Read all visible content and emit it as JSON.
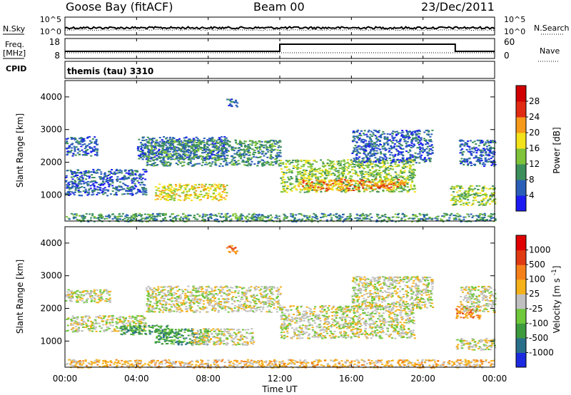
{
  "header": {
    "station": "Goose Bay (fitACF)",
    "beam": "Beam 00",
    "date": "23/Dec/2011"
  },
  "noise_panel": {
    "left_label": "N.Sky",
    "right_label": "N.Search",
    "left_ticks": [
      "10^5",
      "10^0"
    ],
    "right_ticks": [
      "10^5",
      "10^0"
    ]
  },
  "freq_panel": {
    "left_label_1": "Freq.",
    "left_label_2": "[MHz]",
    "right_label": "Nave",
    "left_ticks": [
      "18",
      "8"
    ],
    "right_ticks": [
      "60",
      "0"
    ],
    "freq_step_hours": [
      12.0,
      21.8
    ]
  },
  "cpid": {
    "label": "CPID",
    "value": "themis (tau) 3310"
  },
  "x_axis": {
    "label": "Time UT",
    "ticks": [
      "00:00",
      "04:00",
      "08:00",
      "12:00",
      "16:00",
      "20:00",
      "00:00"
    ],
    "range_hours": [
      0,
      24
    ]
  },
  "chart_data": [
    {
      "type": "heatmap",
      "panel": "power",
      "ylabel": "Slant Range [km]",
      "yticks": [
        "1000",
        "2000",
        "3000",
        "4000"
      ],
      "ylim": [
        200,
        4500
      ],
      "colorbar_label": "Power [dB]",
      "colorbar_ticks": [
        "4",
        "8",
        "12",
        "16",
        "20",
        "24",
        "28"
      ],
      "colorbar_colors": [
        "#1c1cf2",
        "#2a5fb8",
        "#3d8f5c",
        "#7ec33a",
        "#f3e21a",
        "#f59a1a",
        "#e02a12",
        "#d00000"
      ],
      "scatter_regions": [
        {
          "t": [
            0.0,
            1.8
          ],
          "r": [
            2200,
            2800
          ],
          "level": 1
        },
        {
          "t": [
            0.0,
            4.5
          ],
          "r": [
            1000,
            1800
          ],
          "level": 1
        },
        {
          "t": [
            4.0,
            9.0
          ],
          "r": [
            2100,
            2800
          ],
          "level": 1
        },
        {
          "t": [
            5.0,
            9.0
          ],
          "r": [
            850,
            1350
          ],
          "level": 4
        },
        {
          "t": [
            4.5,
            12.0
          ],
          "r": [
            1900,
            2700
          ],
          "level": 2
        },
        {
          "t": [
            12.0,
            19.5
          ],
          "r": [
            1100,
            2100
          ],
          "level": 3
        },
        {
          "t": [
            13.0,
            19.0
          ],
          "r": [
            1150,
            1500
          ],
          "level": 5
        },
        {
          "t": [
            16.0,
            20.5
          ],
          "r": [
            2000,
            3000
          ],
          "level": 1
        },
        {
          "t": [
            21.5,
            24.0
          ],
          "r": [
            700,
            1300
          ],
          "level": 3
        },
        {
          "t": [
            22.0,
            24.0
          ],
          "r": [
            1900,
            2700
          ],
          "level": 1
        },
        {
          "t": [
            0.0,
            24.0
          ],
          "r": [
            200,
            450
          ],
          "level": 2
        },
        {
          "t": [
            9.0,
            9.6
          ],
          "r": [
            3700,
            3950
          ],
          "level": 1
        }
      ]
    },
    {
      "type": "heatmap",
      "panel": "velocity",
      "ylabel": "Slant Range [km]",
      "yticks": [
        "1000",
        "2000",
        "3000",
        "4000"
      ],
      "ylim": [
        200,
        4500
      ],
      "colorbar_label": "Velocity [m s^-1]",
      "colorbar_ticks": [
        "1000",
        "500",
        "100",
        "25",
        "-25",
        "-100",
        "-500",
        "-1000"
      ],
      "colorbar_colors": [
        "#1c2ae0",
        "#2a6f8a",
        "#3d9a3d",
        "#6ec83a",
        "#c0c0c0",
        "#f5b11a",
        "#f5801a",
        "#e03a12",
        "#e00000"
      ],
      "scatter_regions": [
        {
          "t": [
            0.0,
            2.5
          ],
          "r": [
            2200,
            2600
          ],
          "level": 4
        },
        {
          "t": [
            0.0,
            4.5
          ],
          "r": [
            1300,
            1800
          ],
          "level": 4
        },
        {
          "t": [
            3.0,
            6.0
          ],
          "r": [
            1200,
            1500
          ],
          "level": 2
        },
        {
          "t": [
            5.0,
            8.0
          ],
          "r": [
            900,
            1400
          ],
          "level": 2
        },
        {
          "t": [
            7.0,
            10.5
          ],
          "r": [
            900,
            1400
          ],
          "level": 4
        },
        {
          "t": [
            4.5,
            12.0
          ],
          "r": [
            1900,
            2700
          ],
          "level": 4
        },
        {
          "t": [
            12.0,
            19.5
          ],
          "r": [
            1100,
            2100
          ],
          "level": 4
        },
        {
          "t": [
            16.0,
            20.5
          ],
          "r": [
            2000,
            3000
          ],
          "level": 4
        },
        {
          "t": [
            21.8,
            23.2
          ],
          "r": [
            1700,
            2100
          ],
          "level": 6
        },
        {
          "t": [
            22.0,
            24.0
          ],
          "r": [
            1900,
            2700
          ],
          "level": 4
        },
        {
          "t": [
            21.8,
            24.0
          ],
          "r": [
            750,
            1100
          ],
          "level": 4
        },
        {
          "t": [
            0.0,
            24.0
          ],
          "r": [
            200,
            450
          ],
          "level": 5
        },
        {
          "t": [
            9.0,
            9.6
          ],
          "r": [
            3700,
            3950
          ],
          "level": 6
        }
      ]
    }
  ]
}
